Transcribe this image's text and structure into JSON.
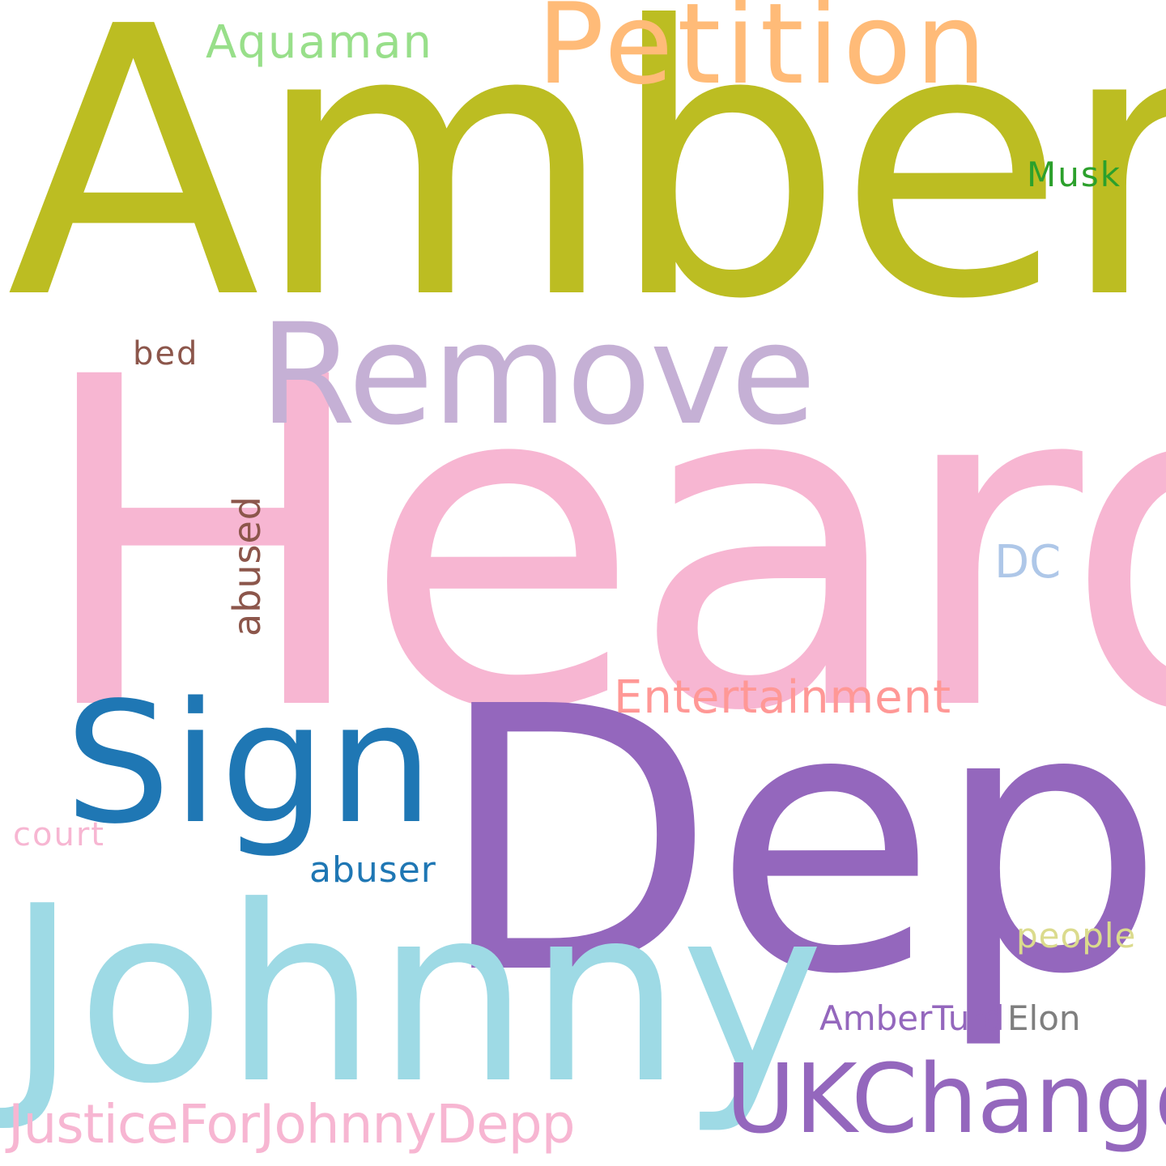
{
  "words": [
    {
      "text": "Amber",
      "color": "#bcbd22"
    },
    {
      "text": "Heard",
      "color": "#f7b6d2"
    },
    {
      "text": "Depp",
      "color": "#9467bd"
    },
    {
      "text": "Johnny",
      "color": "#9edae5"
    },
    {
      "text": "Petition",
      "color": "#ffbb78"
    },
    {
      "text": "Remove",
      "color": "#c5b0d5"
    },
    {
      "text": "Sign",
      "color": "#1f77b4"
    },
    {
      "text": "UKChange",
      "color": "#9467bd"
    },
    {
      "text": "Entertainment",
      "color": "#ff9896"
    },
    {
      "text": "JusticeForJohnnyDepp",
      "color": "#f7b6d2"
    },
    {
      "text": "Aquaman",
      "color": "#98df8a"
    },
    {
      "text": "Musk",
      "color": "#2ca02c"
    },
    {
      "text": "bed",
      "color": "#8c564b"
    },
    {
      "text": "abused",
      "color": "#8c564b"
    },
    {
      "text": "DC",
      "color": "#aec7e8"
    },
    {
      "text": "court",
      "color": "#f7b6d2"
    },
    {
      "text": "abuser",
      "color": "#1f77b4"
    },
    {
      "text": "people",
      "color": "#dbdb8d"
    },
    {
      "text": "AmberTurd",
      "color": "#9467bd"
    },
    {
      "text": "Elon",
      "color": "#7f7f7f"
    }
  ]
}
